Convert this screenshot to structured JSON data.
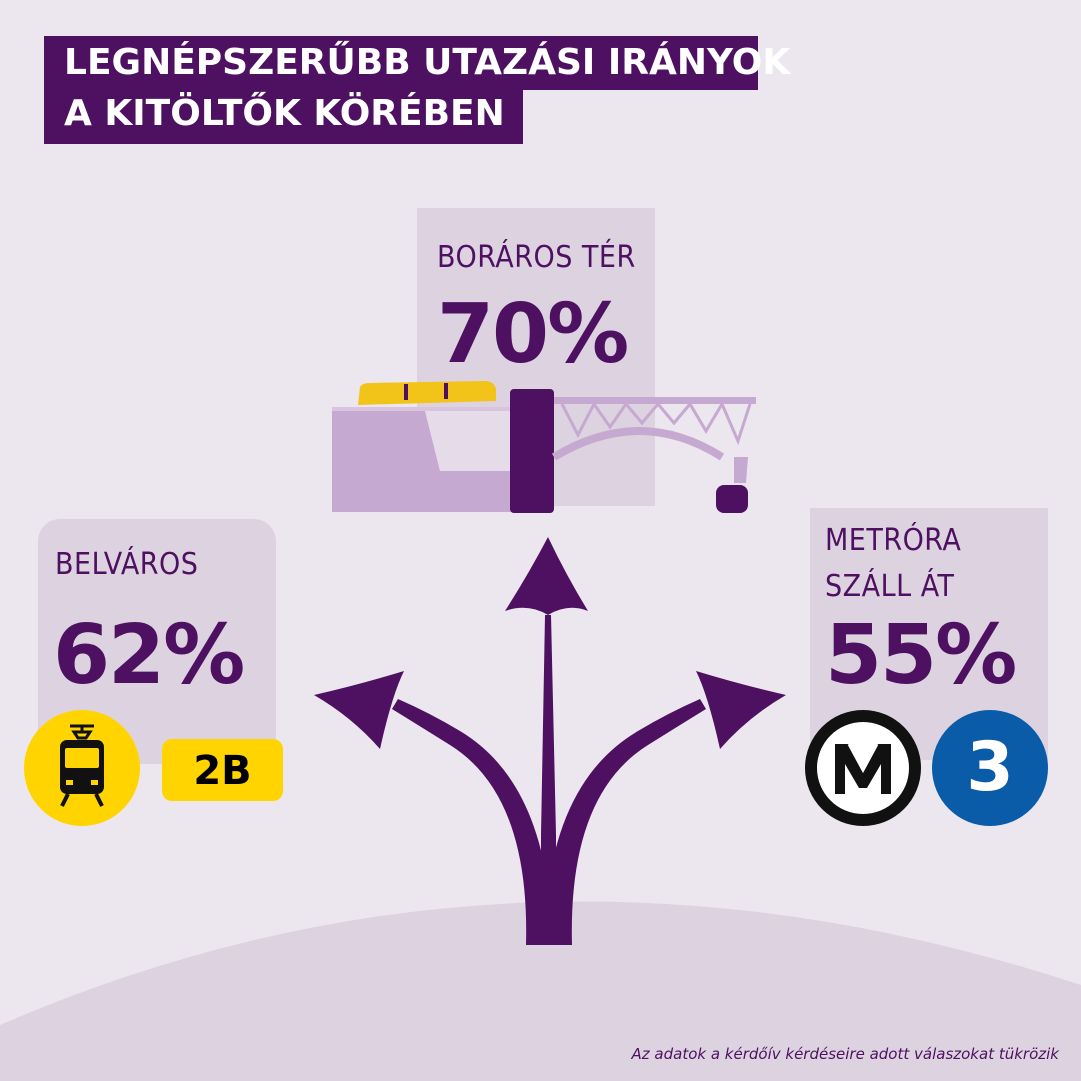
{
  "title": {
    "line1": "LEGNÉPSZERŰBB UTAZÁSI IRÁNYOK",
    "line2": "A KITÖLTŐK KÖRÉBEN"
  },
  "destinations": {
    "center": {
      "label": "BORÁROS TÉR",
      "value": "70%"
    },
    "left": {
      "label": "BELVÁROS",
      "value": "62%",
      "line_badge": "2B"
    },
    "right": {
      "label_line1": "METRÓRA",
      "label_line2": "SZÁLL ÁT",
      "value": "55%",
      "metro_line": "3"
    }
  },
  "icons": {
    "tram": "tram-icon",
    "metro": "metro-m-logo-icon",
    "bridge": "bridge-illustration",
    "arrows": "three-way-arrows-icon"
  },
  "colors": {
    "brand_purple": "#4e1060",
    "tram_yellow": "#ffd400",
    "metro3_blue": "#0a5ca8",
    "panel": "#ddd3e0"
  },
  "footnote": "Az adatok a kérdőív kérdéseire adott válaszokat tükrözik"
}
